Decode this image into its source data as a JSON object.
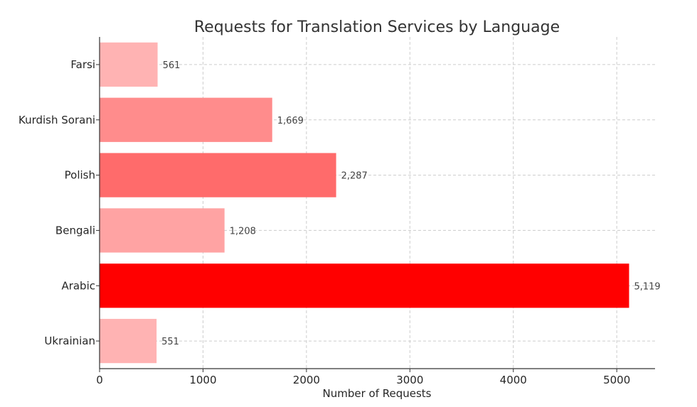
{
  "chart_data": {
    "type": "bar",
    "orientation": "horizontal",
    "title": "Requests for Translation Services by Language",
    "xlabel": "Number of Requests",
    "ylabel": "",
    "xlim": [
      0,
      5370
    ],
    "xticks": [
      0,
      1000,
      2000,
      3000,
      4000,
      5000
    ],
    "grid": true,
    "categories": [
      "Farsi",
      "Kurdish Sorani",
      "Polish",
      "Bengali",
      "Arabic",
      "Ukrainian"
    ],
    "values": [
      561,
      1669,
      2287,
      1208,
      5119,
      551
    ],
    "value_labels": [
      "561",
      "1,669",
      "2,287",
      "1,208",
      "5,119",
      "551"
    ],
    "colors": [
      "#ffb3b3",
      "#ff8c8c",
      "#ff6b6b",
      "#ffa3a3",
      "#ff0000",
      "#ffb3b3"
    ]
  }
}
